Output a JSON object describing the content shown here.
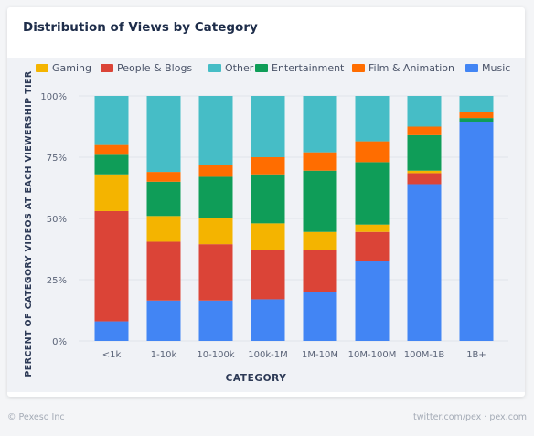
{
  "card": {
    "title": "Distribution of Views by Category"
  },
  "footer": {
    "left": "© Pexeso Inc",
    "right": "twitter.com/pex · pex.com"
  },
  "chart_data": {
    "type": "bar",
    "stacked": true,
    "title": "Distribution of Views by Category",
    "xlabel": "CATEGORY",
    "ylabel": "PERCENT OF CATEGORY VIDEOS AT EACH VIEWERSHIP TIER",
    "ylim": [
      0,
      100
    ],
    "yticks": [
      0,
      25,
      50,
      75,
      100
    ],
    "ytick_labels": [
      "0%",
      "25%",
      "50%",
      "75%",
      "100%"
    ],
    "legend_position": "top",
    "legend_order": [
      "Gaming",
      "People & Blogs",
      "Other",
      "Entertainment",
      "Film & Animation",
      "Music"
    ],
    "categories": [
      "<1k",
      "1-10k",
      "10-100k",
      "100k-1M",
      "1M-10M",
      "10M-100M",
      "100M-1B",
      "1B+"
    ],
    "series": [
      {
        "name": "Music",
        "color": "#4285f4",
        "values": [
          8,
          16.5,
          16.5,
          17,
          20,
          32.5,
          64,
          89.5
        ]
      },
      {
        "name": "People & Blogs",
        "color": "#db4437",
        "values": [
          45,
          24,
          23,
          20,
          17,
          12,
          4.5,
          0
        ]
      },
      {
        "name": "Gaming",
        "color": "#f4b400",
        "values": [
          15,
          10.5,
          10.5,
          11,
          7.5,
          3,
          1,
          0
        ]
      },
      {
        "name": "Entertainment",
        "color": "#0f9d58",
        "values": [
          8,
          14,
          17,
          20,
          25,
          25.5,
          14.5,
          1.5
        ]
      },
      {
        "name": "Film & Animation",
        "color": "#ff6d00",
        "values": [
          4,
          4,
          5,
          7,
          7.5,
          8.5,
          3.5,
          2.5
        ]
      },
      {
        "name": "Other",
        "color": "#46bdc6",
        "values": [
          20,
          31,
          28,
          25,
          23,
          18.5,
          12.5,
          6.5
        ]
      }
    ]
  }
}
